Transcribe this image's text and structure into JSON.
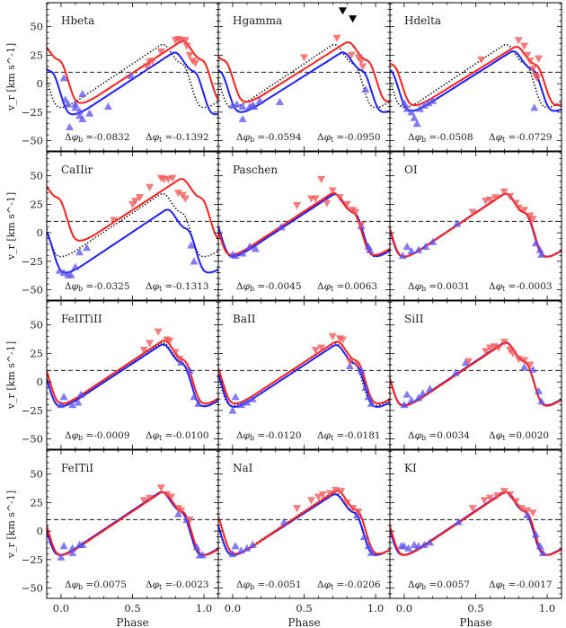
{
  "chart_data": {
    "type": "line",
    "layout": "4x3 grid of panels, shared axes",
    "xlabel": "Phase",
    "ylabel": "v_r [km s^-1]",
    "xlim": [
      -0.1,
      1.1
    ],
    "ylim": [
      -59,
      71
    ],
    "xticks": [
      0.0,
      0.5,
      1.0
    ],
    "xtick_labels": [
      "0.0",
      "0.5",
      "1.0"
    ],
    "yticks": [
      -50,
      -25,
      0,
      25,
      50
    ],
    "ytick_labels": [
      "−50",
      "−25",
      "0",
      "25",
      "50"
    ],
    "reference_line": {
      "value": 10,
      "style": "dashed",
      "color": "#333333"
    },
    "colors": {
      "blue": "#1f1fff",
      "red": "#ff1f1f",
      "template": "#000000",
      "blue_points": "#5a4fef",
      "red_points": "#f25050"
    },
    "markers": {
      "blue": "triangle-up",
      "red": "triangle-down"
    },
    "panels": [
      {
        "title": "Hbeta",
        "dphi_b": "-0.0832",
        "dphi_t": "-0.1392",
        "blue_points": [
          [
            0.02,
            5
          ],
          [
            0.03,
            -14
          ],
          [
            0.05,
            -18
          ],
          [
            0.1,
            -18
          ],
          [
            0.1,
            -21
          ],
          [
            0.13,
            -24
          ],
          [
            0.13,
            -28
          ],
          [
            0.15,
            -31
          ],
          [
            0.2,
            -26
          ],
          [
            0.06,
            -38
          ],
          [
            0.15,
            -9
          ],
          [
            0.33,
            -20
          ],
          [
            0.49,
            7
          ]
        ],
        "red_points": [
          [
            0.6,
            15
          ],
          [
            0.62,
            19
          ],
          [
            0.64,
            20
          ],
          [
            0.7,
            28
          ],
          [
            0.8,
            38
          ],
          [
            0.82,
            39
          ],
          [
            0.84,
            38
          ],
          [
            0.87,
            38
          ],
          [
            0.88,
            33
          ],
          [
            0.9,
            25
          ],
          [
            0.92,
            20
          ],
          [
            0.94,
            18
          ]
        ]
      },
      {
        "title": "Hgamma",
        "dphi_b": "-0.0594",
        "dphi_t": "-0.0950",
        "blue_points": [
          [
            0.0,
            -19
          ],
          [
            0.03,
            -18
          ],
          [
            0.07,
            -20
          ],
          [
            0.07,
            -31
          ],
          [
            0.12,
            -20
          ],
          [
            0.14,
            -19
          ],
          [
            0.15,
            -20
          ],
          [
            0.19,
            -15
          ],
          [
            0.33,
            -16
          ],
          [
            0.93,
            -5
          ]
        ],
        "red_points": [
          [
            0.5,
            23
          ],
          [
            0.73,
            40
          ],
          [
            0.83,
            25
          ],
          [
            0.88,
            23
          ],
          [
            0.9,
            20
          ],
          [
            0.91,
            15
          ]
        ],
        "black_points": [
          [
            0.77,
            64
          ],
          [
            0.84,
            57
          ]
        ]
      },
      {
        "title": "Hdelta",
        "dphi_b": "-0.0508",
        "dphi_t": "-0.0729",
        "blue_points": [
          [
            0.0,
            -17
          ],
          [
            0.02,
            -22
          ],
          [
            0.05,
            -25
          ],
          [
            0.07,
            -30
          ],
          [
            0.09,
            -35
          ],
          [
            0.11,
            -22
          ],
          [
            0.14,
            -19
          ],
          [
            0.17,
            -17
          ],
          [
            0.2,
            -15
          ],
          [
            0.91,
            -21
          ]
        ],
        "red_points": [
          [
            0.54,
            21
          ],
          [
            0.8,
            38
          ],
          [
            0.84,
            33
          ],
          [
            0.86,
            25
          ],
          [
            0.88,
            20
          ],
          [
            0.9,
            13
          ],
          [
            0.92,
            7
          ],
          [
            0.94,
            22
          ],
          [
            0.93,
            5
          ]
        ]
      },
      {
        "title": "CaIIir",
        "dphi_b": "-0.0325",
        "dphi_t": "-0.1313",
        "blue_points": [
          [
            -0.01,
            -33
          ],
          [
            0.02,
            -35
          ],
          [
            0.05,
            -37
          ],
          [
            0.07,
            -37
          ],
          [
            0.1,
            -30
          ],
          [
            0.13,
            -17
          ],
          [
            0.18,
            -13
          ],
          [
            0.91,
            -11
          ],
          [
            0.93,
            -25
          ]
        ],
        "red_points": [
          [
            0.37,
            11
          ],
          [
            0.5,
            25
          ],
          [
            0.52,
            28
          ],
          [
            0.55,
            31
          ],
          [
            0.62,
            40
          ],
          [
            0.7,
            48
          ],
          [
            0.72,
            47
          ],
          [
            0.75,
            47
          ],
          [
            0.78,
            48
          ],
          [
            0.82,
            35
          ],
          [
            0.85,
            33
          ],
          [
            0.87,
            30
          ]
        ]
      },
      {
        "title": "Paschen",
        "dphi_b": "-0.0045",
        "dphi_t": "0.0063",
        "blue_points": [
          [
            0.0,
            -19
          ],
          [
            0.02,
            -20
          ],
          [
            0.07,
            -18
          ],
          [
            0.12,
            -12
          ],
          [
            0.16,
            -14
          ],
          [
            0.34,
            5
          ],
          [
            0.9,
            6
          ],
          [
            0.95,
            -12
          ],
          [
            0.96,
            -15
          ]
        ],
        "red_points": [
          [
            0.45,
            24
          ],
          [
            0.55,
            30
          ],
          [
            0.58,
            30
          ],
          [
            0.62,
            47
          ],
          [
            0.66,
            26
          ],
          [
            0.7,
            37
          ],
          [
            0.75,
            31
          ],
          [
            0.8,
            25
          ],
          [
            0.84,
            20
          ],
          [
            0.86,
            18
          ],
          [
            0.9,
            7
          ]
        ]
      },
      {
        "title": "OI",
        "dphi_b": "0.0031",
        "dphi_t": "-0.0003",
        "blue_points": [
          [
            -0.01,
            -20
          ],
          [
            0.02,
            -12
          ],
          [
            0.05,
            -16
          ],
          [
            0.1,
            -15
          ],
          [
            0.15,
            -12
          ],
          [
            0.2,
            -8
          ],
          [
            0.37,
            8
          ],
          [
            0.92,
            -9
          ],
          [
            0.95,
            -15
          ],
          [
            0.96,
            -19
          ]
        ],
        "red_points": [
          [
            0.48,
            18
          ],
          [
            0.57,
            28
          ],
          [
            0.6,
            29
          ],
          [
            0.64,
            31
          ],
          [
            0.7,
            36
          ],
          [
            0.74,
            32
          ],
          [
            0.78,
            26
          ],
          [
            0.8,
            22
          ],
          [
            0.84,
            20
          ],
          [
            0.88,
            15
          ],
          [
            0.9,
            12
          ]
        ]
      },
      {
        "title": "FeIITiII",
        "dphi_b": "-0.0009",
        "dphi_t": "-0.0100",
        "blue_points": [
          [
            0.0,
            -20
          ],
          [
            0.02,
            -13
          ],
          [
            0.08,
            -20
          ],
          [
            0.12,
            -18
          ],
          [
            0.14,
            -11
          ],
          [
            0.84,
            17
          ],
          [
            0.9,
            10
          ],
          [
            0.93,
            -13
          ],
          [
            0.96,
            -19
          ]
        ],
        "red_points": [
          [
            0.58,
            28
          ],
          [
            0.62,
            34
          ],
          [
            0.68,
            44
          ],
          [
            0.74,
            37
          ],
          [
            0.76,
            36
          ],
          [
            0.8,
            26
          ],
          [
            0.83,
            20
          ]
        ]
      },
      {
        "title": "BaII",
        "dphi_b": "-0.0120",
        "dphi_t": "-0.0181",
        "blue_points": [
          [
            0.0,
            -25
          ],
          [
            0.02,
            -13
          ],
          [
            0.06,
            -20
          ],
          [
            0.1,
            -18
          ],
          [
            0.14,
            -15
          ],
          [
            0.82,
            14
          ],
          [
            0.9,
            10
          ],
          [
            0.93,
            -5
          ],
          [
            0.95,
            -13
          ],
          [
            0.97,
            -19
          ]
        ],
        "red_points": [
          [
            0.58,
            28
          ],
          [
            0.62,
            30
          ],
          [
            0.7,
            40
          ],
          [
            0.75,
            38
          ],
          [
            0.77,
            37
          ],
          [
            0.82,
            18
          ],
          [
            0.87,
            15
          ]
        ]
      },
      {
        "title": "SiII",
        "dphi_b": "0.0034",
        "dphi_t": "0.0020",
        "blue_points": [
          [
            0.0,
            -20
          ],
          [
            0.02,
            -11
          ],
          [
            0.05,
            -16
          ],
          [
            0.1,
            -14
          ],
          [
            0.13,
            -10
          ],
          [
            0.18,
            -6
          ],
          [
            0.36,
            8
          ],
          [
            0.43,
            17
          ],
          [
            0.84,
            13
          ],
          [
            0.9,
            11
          ],
          [
            0.94,
            -8
          ],
          [
            0.96,
            -17
          ]
        ],
        "red_points": [
          [
            0.45,
            18
          ],
          [
            0.57,
            27
          ],
          [
            0.6,
            30
          ],
          [
            0.63,
            31
          ],
          [
            0.66,
            30
          ],
          [
            0.7,
            35
          ],
          [
            0.74,
            28
          ],
          [
            0.76,
            25
          ],
          [
            0.8,
            20
          ],
          [
            0.84,
            19
          ],
          [
            0.88,
            15
          ]
        ]
      },
      {
        "title": "FeITiI",
        "dphi_b": "0.0075",
        "dphi_t": "-0.0023",
        "blue_points": [
          [
            0.0,
            -23
          ],
          [
            0.02,
            -13
          ],
          [
            0.08,
            -19
          ],
          [
            0.08,
            -15
          ],
          [
            0.13,
            -12
          ],
          [
            0.15,
            -12
          ],
          [
            0.82,
            15
          ],
          [
            0.88,
            10
          ],
          [
            0.95,
            -14
          ],
          [
            0.97,
            -21
          ],
          [
            0.99,
            -21
          ]
        ],
        "red_points": [
          [
            0.58,
            27
          ],
          [
            0.62,
            29
          ],
          [
            0.7,
            38
          ],
          [
            0.74,
            32
          ],
          [
            0.77,
            30
          ],
          [
            0.82,
            20
          ],
          [
            0.84,
            18
          ],
          [
            0.9,
            10
          ]
        ]
      },
      {
        "title": "NaI",
        "dphi_b": "-0.0051",
        "dphi_t": "-0.0206",
        "blue_points": [
          [
            0.0,
            -20
          ],
          [
            0.02,
            -13
          ],
          [
            0.06,
            -17
          ],
          [
            0.1,
            -15
          ],
          [
            0.14,
            -12
          ],
          [
            0.36,
            8
          ],
          [
            0.87,
            14
          ],
          [
            0.92,
            -5
          ],
          [
            0.95,
            -13
          ],
          [
            0.97,
            -19
          ]
        ],
        "red_points": [
          [
            0.45,
            20
          ],
          [
            0.55,
            27
          ],
          [
            0.6,
            30
          ],
          [
            0.63,
            32
          ],
          [
            0.68,
            33
          ],
          [
            0.72,
            36
          ],
          [
            0.76,
            35
          ],
          [
            0.8,
            25
          ],
          [
            0.84,
            20
          ],
          [
            0.88,
            17
          ]
        ]
      },
      {
        "title": "KI",
        "dphi_b": "0.0057",
        "dphi_t": "-0.0017",
        "blue_points": [
          [
            -0.02,
            -13
          ],
          [
            0.0,
            -13
          ],
          [
            0.03,
            -15
          ],
          [
            0.07,
            -12
          ],
          [
            0.1,
            -13
          ],
          [
            0.14,
            -12
          ],
          [
            0.18,
            -10
          ],
          [
            0.38,
            8
          ],
          [
            0.86,
            14
          ],
          [
            0.92,
            -3
          ],
          [
            0.95,
            -13
          ],
          [
            0.97,
            -19
          ]
        ],
        "red_points": [
          [
            0.48,
            20
          ],
          [
            0.56,
            27
          ],
          [
            0.6,
            29
          ],
          [
            0.65,
            31
          ],
          [
            0.7,
            35
          ],
          [
            0.74,
            32
          ],
          [
            0.78,
            26
          ],
          [
            0.82,
            20
          ],
          [
            0.86,
            18
          ],
          [
            0.9,
            16
          ]
        ]
      }
    ]
  }
}
